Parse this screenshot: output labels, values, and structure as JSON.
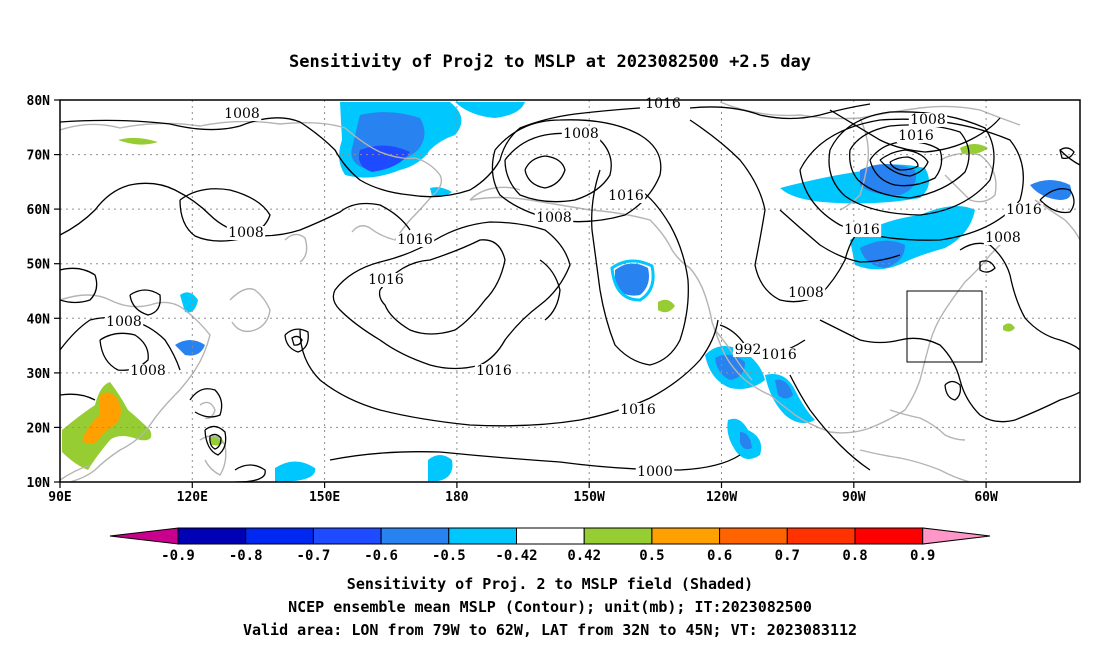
{
  "title": "Sensitivity of Proj2 to MSLP at 2023082500 +2.5 day",
  "map": {
    "lat_labels": [
      "80N",
      "70N",
      "60N",
      "50N",
      "40N",
      "30N",
      "20N",
      "10N"
    ],
    "lon_labels": [
      "90E",
      "120E",
      "150E",
      "180",
      "150W",
      "120W",
      "90W",
      "60W"
    ],
    "lon_range": [
      "90E",
      "45W"
    ],
    "lat_range": [
      "10N",
      "80N"
    ],
    "grid": "dotted",
    "coastline_color": "#b4b4b4",
    "contour_color": "#000000",
    "contour_labels": [
      "1008",
      "1016",
      "1008",
      "1008",
      "1016",
      "1008",
      "1016",
      "1008",
      "1008",
      "1016",
      "1016",
      "1016",
      "1000",
      "992",
      "1008",
      "1016",
      "1016",
      "1016",
      "1008",
      "1008",
      "1016"
    ],
    "valid_area_box": {
      "lon": [
        "79W",
        "62W"
      ],
      "lat": [
        "32N",
        "45N"
      ]
    }
  },
  "colorbar": {
    "labels": [
      "-0.9",
      "-0.8",
      "-0.7",
      "-0.6",
      "-0.5",
      "-0.42",
      "0.42",
      "0.5",
      "0.6",
      "0.7",
      "0.8",
      "0.9"
    ],
    "colors": [
      "#c8008c",
      "#0000b4",
      "#0028f0",
      "#1e4bff",
      "#2882f0",
      "#00c8ff",
      "#ffffff",
      "#96cd32",
      "#ffa000",
      "#ff6400",
      "#ff3200",
      "#ff0000",
      "#ff96c8"
    ]
  },
  "footer": {
    "line1": "Sensitivity of Proj. 2 to MSLP field (Shaded)",
    "line2": "NCEP ensemble mean MSLP (Contour); unit(mb); IT:2023082500",
    "line3": "Valid area: LON from 79W to 62W, LAT from 32N to 45N; VT: 2023083112"
  }
}
